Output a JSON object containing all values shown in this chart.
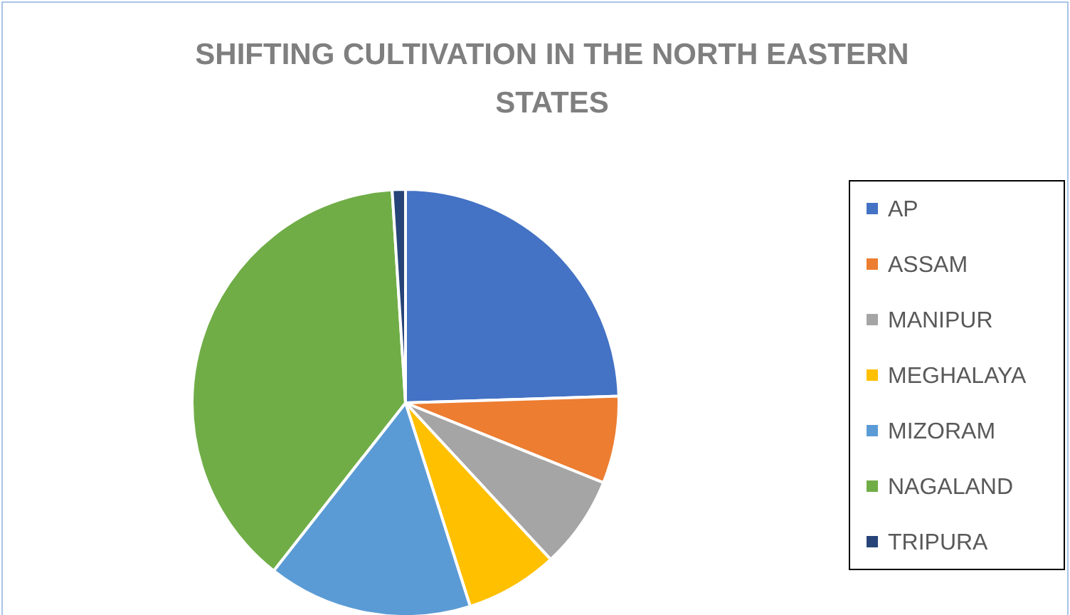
{
  "chart_data": {
    "type": "pie",
    "title": "SHIFTING CULTIVATION IN THE NORTH EASTERN STATES",
    "categories": [
      "AP",
      "ASSAM",
      "MANIPUR",
      "MEGHALAYA",
      "MIZORAM",
      "NAGALAND",
      "TRIPURA"
    ],
    "values": [
      24.5,
      6.6,
      7,
      7,
      15.5,
      38.4,
      1
    ],
    "colors": [
      "#4472c4",
      "#ed7d31",
      "#a5a5a5",
      "#ffc000",
      "#5b9bd5",
      "#70ad47",
      "#264478"
    ],
    "legend": "right"
  }
}
